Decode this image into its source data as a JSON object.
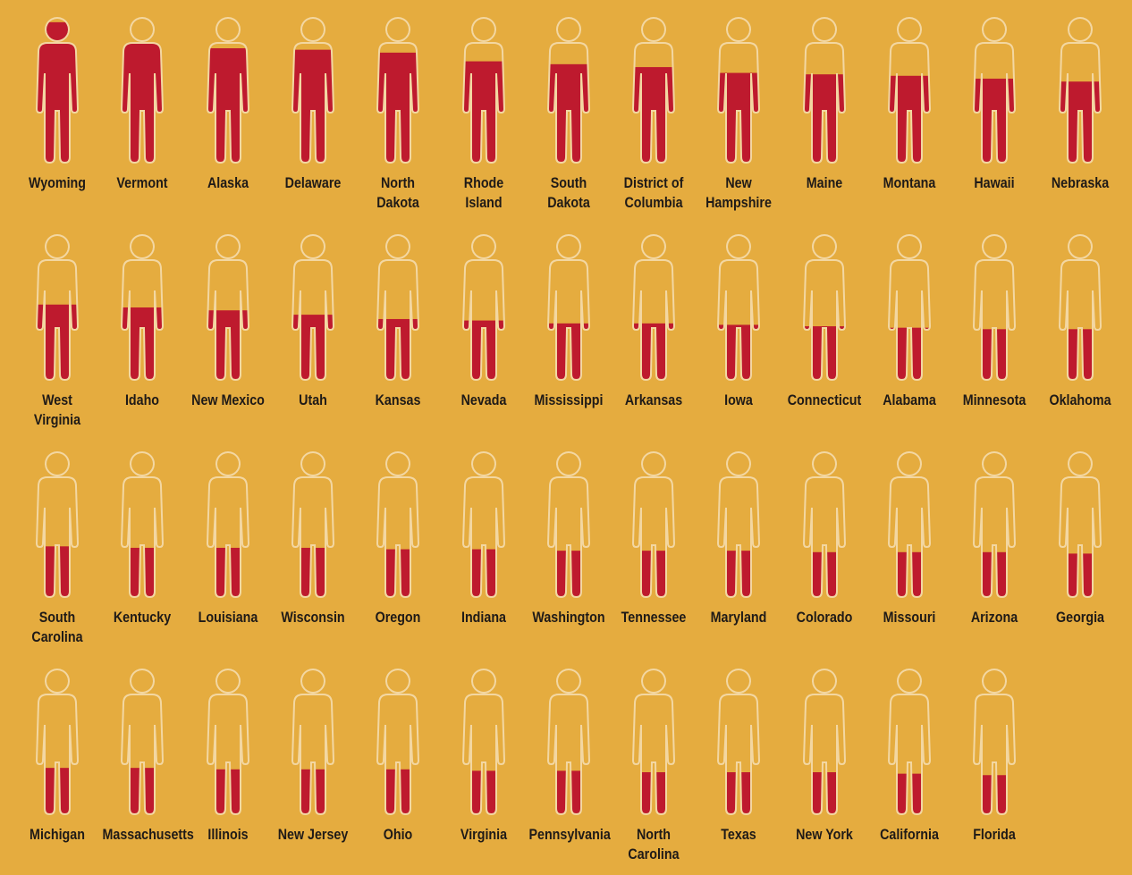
{
  "colors": {
    "background": "#E5AC3F",
    "fill": "#BE1A2E",
    "outline": "#F3D7A2"
  },
  "chart_data": {
    "type": "pictogram",
    "value_scale": "fraction of figure filled",
    "categories": [
      "Wyoming",
      "Vermont",
      "Alaska",
      "Delaware",
      "North Dakota",
      "Rhode Island",
      "South Dakota",
      "District of Columbia",
      "New Hampshire",
      "Maine",
      "Montana",
      "Hawaii",
      "Nebraska",
      "West Virginia",
      "Idaho",
      "New Mexico",
      "Utah",
      "Kansas",
      "Nevada",
      "Mississippi",
      "Arkansas",
      "Iowa",
      "Connecticut",
      "Alabama",
      "Minnesota",
      "Oklahoma",
      "South Carolina",
      "Kentucky",
      "Louisiana",
      "Wisconsin",
      "Oregon",
      "Indiana",
      "Washington",
      "Tennessee",
      "Maryland",
      "Colorado",
      "Missouri",
      "Arizona",
      "Georgia",
      "Michigan",
      "Massachusetts",
      "Illinois",
      "New Jersey",
      "Ohio",
      "Virginia",
      "Pennsylvania",
      "North Carolina",
      "Texas",
      "New York",
      "California",
      "Florida"
    ],
    "labels": [
      "Wyoming",
      "Vermont",
      "Alaska",
      "Delaware",
      "North Dakota",
      "Rhode\nIsland",
      "South Dakota",
      "District of\nColumbia",
      "New\nHampshire",
      "Maine",
      "Montana",
      "Hawaii",
      "Nebraska",
      "West Virginia",
      "Idaho",
      "New Mexico",
      "Utah",
      "Kansas",
      "Nevada",
      "Mississippi",
      "Arkansas",
      "Iowa",
      "Connecticut",
      "Alabama",
      "Minnesota",
      "Oklahoma",
      "South\nCarolina",
      "Kentucky",
      "Louisiana",
      "Wisconsin",
      "Oregon",
      "Indiana",
      "Washington",
      "Tennessee",
      "Maryland",
      "Colorado",
      "Missouri",
      "Arizona",
      "Georgia",
      "Michigan",
      "Massachusetts",
      "Illinois",
      "New Jersey",
      "Ohio",
      "Virginia",
      "Pennsylvania",
      "North\nCarolina",
      "Texas",
      "New York",
      "California",
      "Florida"
    ],
    "values": [
      0.97,
      0.84,
      0.79,
      0.78,
      0.76,
      0.7,
      0.68,
      0.66,
      0.62,
      0.61,
      0.6,
      0.58,
      0.56,
      0.52,
      0.5,
      0.48,
      0.45,
      0.42,
      0.41,
      0.39,
      0.39,
      0.38,
      0.37,
      0.36,
      0.35,
      0.35,
      0.35,
      0.34,
      0.34,
      0.34,
      0.33,
      0.33,
      0.32,
      0.32,
      0.32,
      0.31,
      0.31,
      0.31,
      0.3,
      0.32,
      0.32,
      0.31,
      0.31,
      0.31,
      0.3,
      0.3,
      0.29,
      0.29,
      0.29,
      0.28,
      0.27
    ]
  }
}
